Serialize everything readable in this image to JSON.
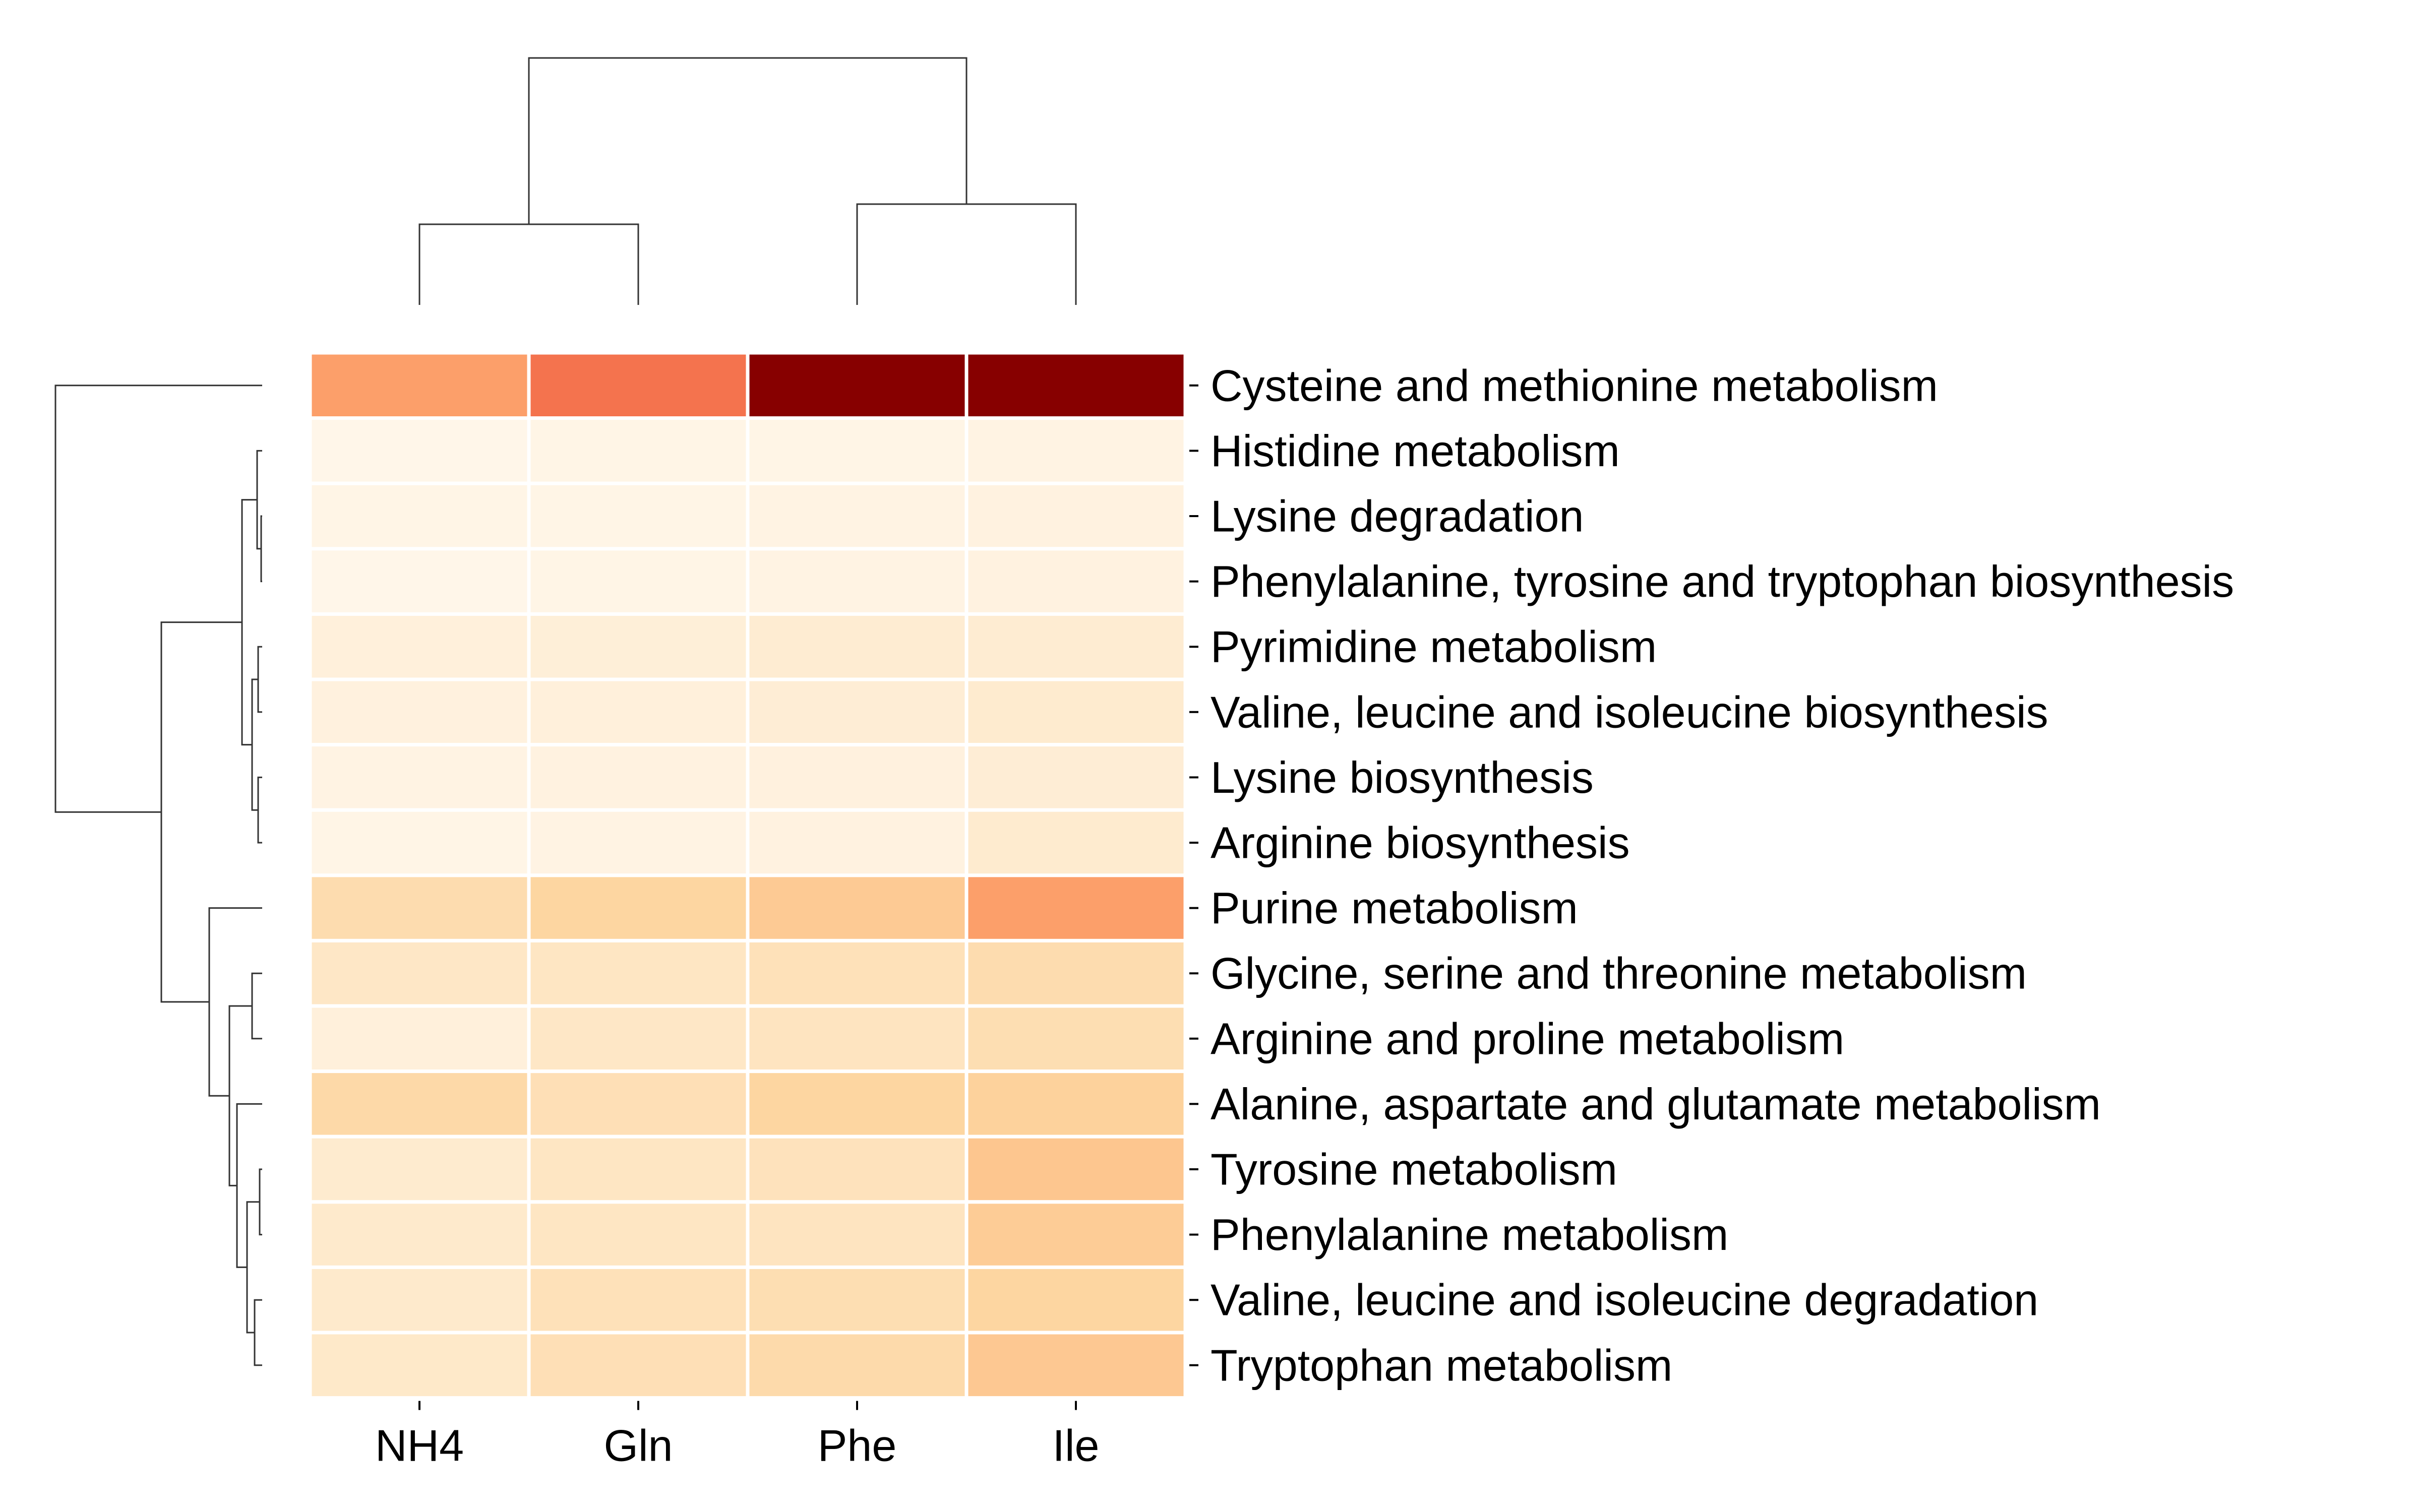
{
  "chart_data": {
    "type": "heatmap",
    "title": "",
    "xlabel": "",
    "ylabel": "",
    "columns": [
      "NH4",
      "Gln",
      "Phe",
      "Ile"
    ],
    "rows": [
      "Cysteine and methionine metabolism",
      "Histidine metabolism",
      "Lysine degradation",
      "Phenylalanine, tyrosine and tryptophan biosynthesis",
      "Pyrimidine metabolism",
      "Valine, leucine and isoleucine biosynthesis",
      "Lysine biosynthesis",
      "Arginine biosynthesis",
      "Purine metabolism",
      "Glycine, serine and threonine metabolism",
      "Arginine and proline metabolism",
      "Alanine, aspartate and glutamate metabolism",
      "Tyrosine metabolism",
      "Phenylalanine metabolism",
      "Valine, leucine and isoleucine degradation",
      "Tryptophan metabolism"
    ],
    "values": [
      [
        0.45,
        0.58,
        0.98,
        0.98
      ],
      [
        0.01,
        0.02,
        0.02,
        0.03
      ],
      [
        0.02,
        0.02,
        0.03,
        0.04
      ],
      [
        0.01,
        0.02,
        0.03,
        0.04
      ],
      [
        0.06,
        0.07,
        0.09,
        0.09
      ],
      [
        0.05,
        0.06,
        0.08,
        0.1
      ],
      [
        0.03,
        0.04,
        0.05,
        0.08
      ],
      [
        0.02,
        0.03,
        0.04,
        0.1
      ],
      [
        0.2,
        0.24,
        0.3,
        0.45
      ],
      [
        0.13,
        0.14,
        0.17,
        0.2
      ],
      [
        0.06,
        0.13,
        0.15,
        0.19
      ],
      [
        0.22,
        0.18,
        0.24,
        0.26
      ],
      [
        0.1,
        0.14,
        0.16,
        0.32
      ],
      [
        0.11,
        0.14,
        0.15,
        0.29
      ],
      [
        0.11,
        0.17,
        0.19,
        0.24
      ],
      [
        0.12,
        0.18,
        0.21,
        0.31
      ]
    ],
    "colormap": [
      "#fff7ec",
      "#fee8c8",
      "#fdd49e",
      "#fdbb84",
      "#fc8d59",
      "#ef6548",
      "#d7301f",
      "#b30000",
      "#7f0000"
    ],
    "column_dendrogram": "((NH4,Gln),(Phe,Ile))",
    "row_dendrogram": "(Cysteine and methionine metabolism,(((Histidine metabolism,(Lysine degradation,Phenylalanine, tyrosine and tryptophan biosynthesis)),((Pyrimidine metabolism,Valine, leucine and isoleucine biosynthesis),(Lysine biosynthesis,Arginine biosynthesis))),(Purine metabolism,((Glycine, serine and threonine metabolism,Arginine and proline metabolism),(Alanine, aspartate and glutamate metabolism,((Tyrosine metabolism,Phenylalanine metabolism),(Valine, leucine and isoleucine degradation,Tryptophan metabolism)))))))",
    "legend": "none",
    "grid": false
  }
}
